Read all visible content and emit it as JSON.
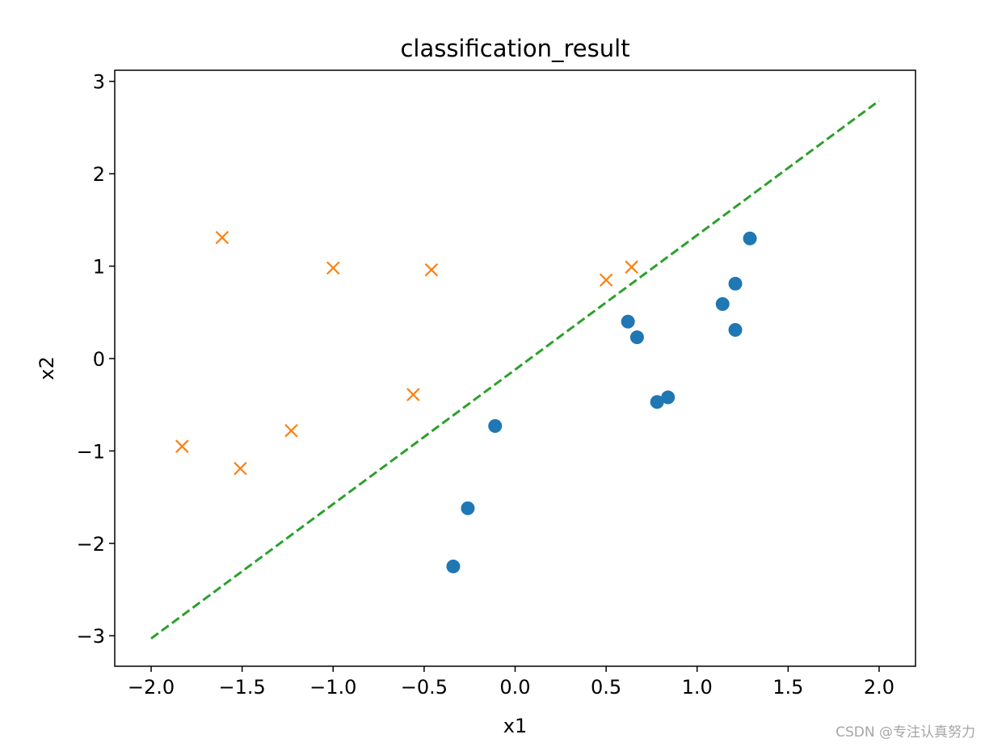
{
  "chart_data": {
    "type": "scatter",
    "title": "classification_result",
    "xlabel": "x1",
    "ylabel": "x2",
    "xlim": [
      -2.2,
      2.2
    ],
    "ylim": [
      -3.33,
      3.12
    ],
    "xticks": [
      -2.0,
      -1.5,
      -1.0,
      -0.5,
      0.0,
      0.5,
      1.0,
      1.5,
      2.0
    ],
    "xtick_labels": [
      "−2.0",
      "−1.5",
      "−1.0",
      "−0.5",
      "0.0",
      "0.5",
      "1.0",
      "1.5",
      "2.0"
    ],
    "yticks": [
      -3,
      -2,
      -1,
      0,
      1,
      2,
      3
    ],
    "ytick_labels": [
      "−3",
      "−2",
      "−1",
      "0",
      "1",
      "2",
      "3"
    ],
    "grid": false,
    "series": [
      {
        "marker": "circle",
        "color": "#1f77b4",
        "points": [
          [
            -0.34,
            -2.25
          ],
          [
            -0.26,
            -1.62
          ],
          [
            -0.11,
            -0.73
          ],
          [
            0.62,
            0.4
          ],
          [
            0.67,
            0.23
          ],
          [
            0.78,
            -0.47
          ],
          [
            0.84,
            -0.42
          ],
          [
            1.14,
            0.59
          ],
          [
            1.21,
            0.81
          ],
          [
            1.21,
            0.31
          ],
          [
            1.29,
            1.3
          ]
        ]
      },
      {
        "marker": "x",
        "color": "#ff7f0e",
        "points": [
          [
            -1.83,
            -0.95
          ],
          [
            -1.61,
            1.31
          ],
          [
            -1.51,
            -1.19
          ],
          [
            -1.23,
            -0.78
          ],
          [
            -1.0,
            0.98
          ],
          [
            -0.56,
            -0.39
          ],
          [
            -0.46,
            0.96
          ],
          [
            0.5,
            0.85
          ],
          [
            0.64,
            0.99
          ]
        ]
      },
      {
        "marker": "dashed-line",
        "color": "#2ca02c",
        "points": [
          [
            -2.0,
            -3.03
          ],
          [
            2.0,
            2.79
          ]
        ]
      }
    ]
  },
  "watermark": "CSDN @专注认真努力"
}
